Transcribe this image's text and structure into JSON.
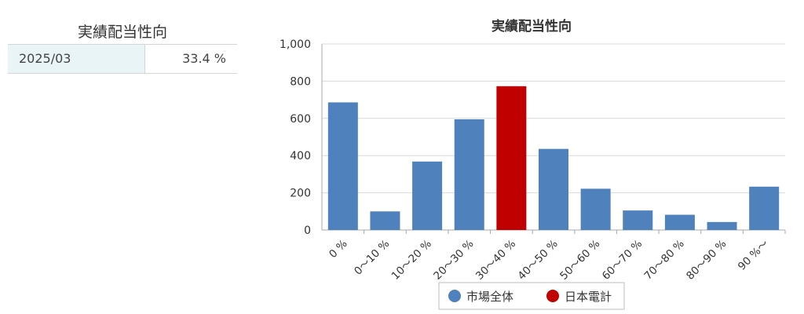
{
  "summary": {
    "title": "実績配当性向",
    "period": "2025/03",
    "value": "33.4 %"
  },
  "chart_data": {
    "type": "bar",
    "title": "実績配当性向",
    "categories": [
      "0 %",
      "0～10 %",
      "10～20 %",
      "20～30 %",
      "30～40 %",
      "40～50 %",
      "50～60 %",
      "60～70 %",
      "70～80 %",
      "80～90 %",
      "90 %～"
    ],
    "values": [
      686,
      100,
      368,
      595,
      773,
      436,
      222,
      105,
      82,
      43,
      233
    ],
    "highlight_index": 4,
    "ylim": [
      0,
      1000
    ],
    "yticks": [
      "0",
      "200",
      "400",
      "600",
      "800",
      "1,000"
    ],
    "grid": true,
    "legend": [
      {
        "name": "市場全体",
        "color": "#4f81bd"
      },
      {
        "name": "日本電計",
        "color": "#c00000"
      }
    ],
    "legend_position": "bottom",
    "colors": {
      "market": "#4f81bd",
      "company": "#c00000"
    }
  }
}
